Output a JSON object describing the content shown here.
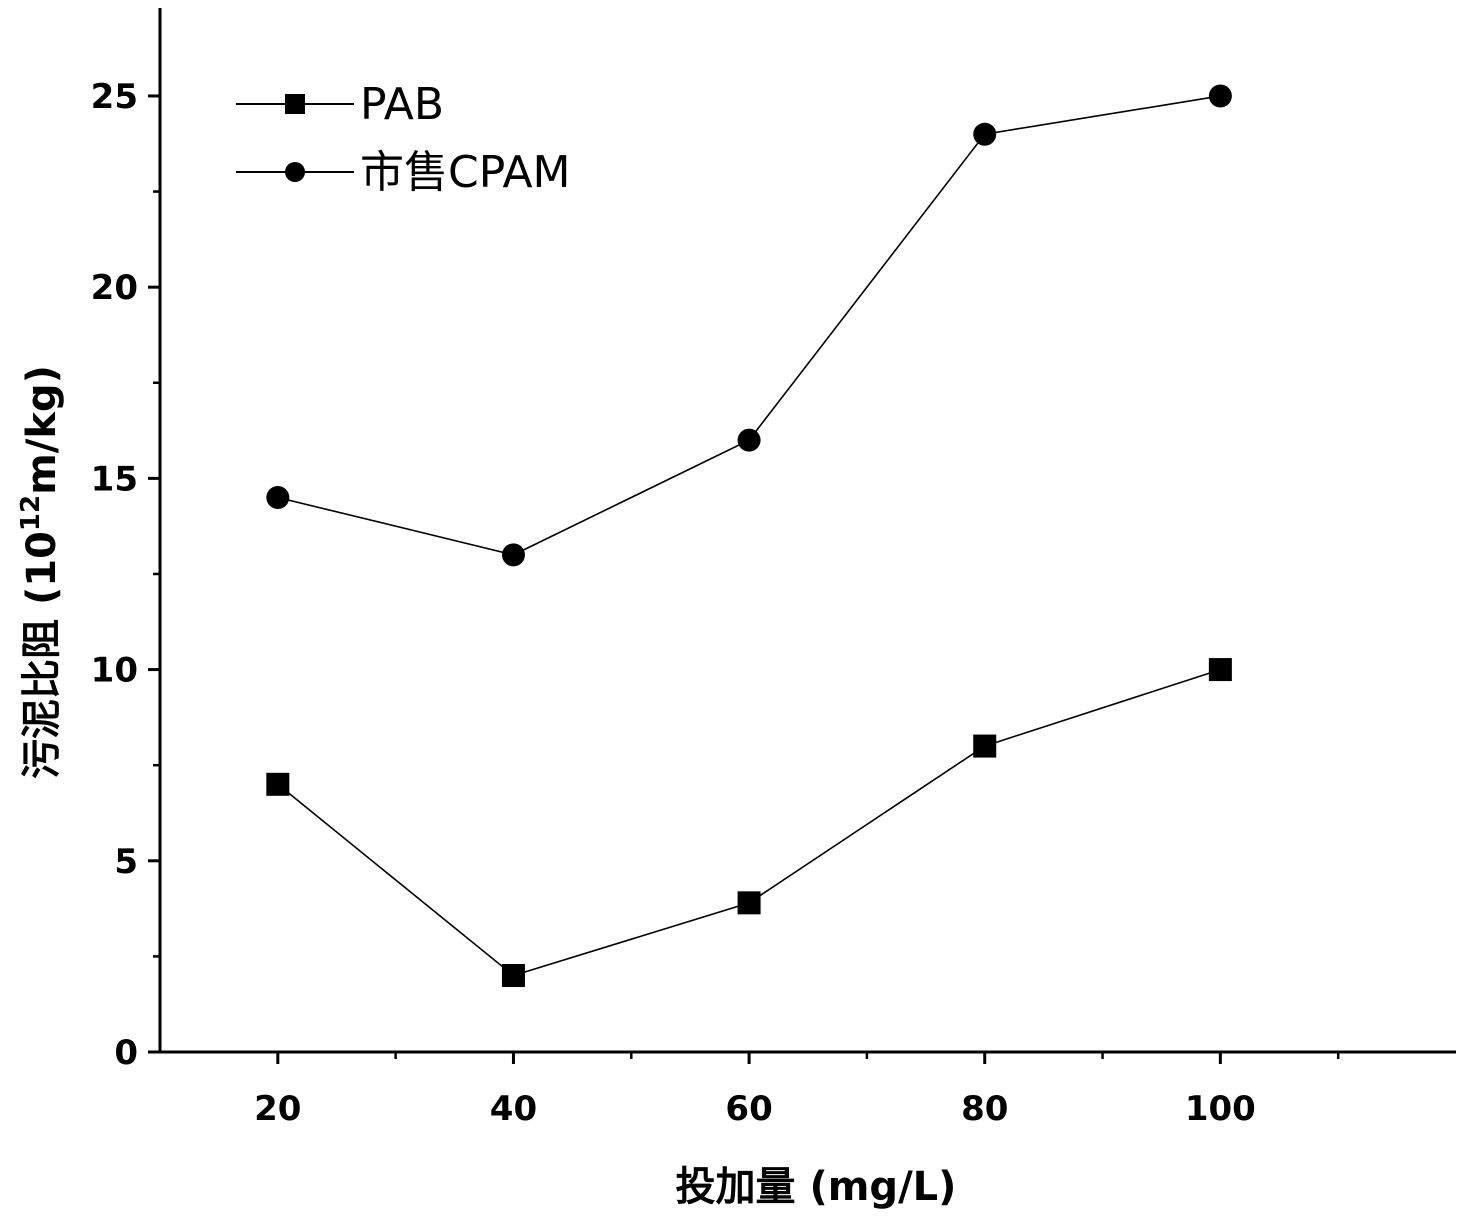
{
  "chart_data": {
    "type": "line",
    "x": [
      20,
      40,
      60,
      80,
      100
    ],
    "series": [
      {
        "name": "PAB",
        "marker": "square",
        "values": [
          7.0,
          2.0,
          3.9,
          8.0,
          10.0
        ]
      },
      {
        "name": "市售CPAM",
        "marker": "circle",
        "values": [
          14.5,
          13.0,
          16.0,
          24.0,
          25.0
        ]
      }
    ],
    "xlabel": "投加量 (mg/L)",
    "ylabel": {
      "prefix": "污泥比阻 (10",
      "superscript": "12",
      "suffix": "m/kg)"
    },
    "xlim": [
      10,
      120
    ],
    "ylim": [
      0,
      27.3
    ],
    "xticks": [
      20,
      40,
      60,
      80,
      100
    ],
    "xticks_minor": [
      30,
      50,
      70,
      90,
      110
    ],
    "yticks": [
      0,
      5,
      10,
      15,
      20,
      25
    ],
    "yticks_minor": [
      2.5,
      7.5,
      12.5,
      17.5,
      22.5
    ],
    "grid": false,
    "legend_position": "top-left",
    "colors": {
      "line": "#000000",
      "marker": "#000000"
    }
  }
}
